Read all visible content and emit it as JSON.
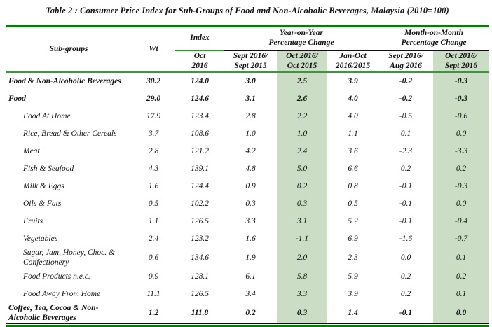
{
  "title": "Table 2 : Consumer Price Index for Sub-Groups of Food and Non-Alcoholic Beverages, Malaysia (2010=100)",
  "colors": {
    "table_border_green": "#008000",
    "header_rule_green": "#3c963c",
    "index_rule_green": "#2f8f2f",
    "highlight_green": "#cbdec5",
    "text": "#111111"
  },
  "header": {
    "subgroups": "Sub-groups",
    "wt": "Wt",
    "index_group": "Index",
    "yoy_line1": "Year-on-Year",
    "yoy_line2": "Percentage Change",
    "mom_line1": "Month-on-Month",
    "mom_line2": "Percentage Change"
  },
  "columns": [
    {
      "line1": "Oct",
      "line2": "2016",
      "highlight": false
    },
    {
      "line1": "Sept 2016/",
      "line2": "Sept 2015",
      "highlight": false
    },
    {
      "line1": "Oct 2016/",
      "line2": "Oct 2015",
      "highlight": true
    },
    {
      "line1": "Jan-Oct",
      "line2": "2016/2015",
      "highlight": false
    },
    {
      "line1": "Sept 2016/",
      "line2": "Aug 2016",
      "highlight": false
    },
    {
      "line1": "Oct 2016/",
      "line2": "Sept 2016",
      "highlight": true
    }
  ],
  "highlight_value_indexes": [
    3,
    6
  ],
  "rows": [
    {
      "label": "Food & Non-Alcoholic Beverages",
      "bold": true,
      "indent": false,
      "values": [
        "30.2",
        "124.0",
        "3.0",
        "2.5",
        "3.9",
        "-0.2",
        "-0.3"
      ]
    },
    {
      "label": "Food",
      "bold": true,
      "indent": false,
      "values": [
        "29.0",
        "124.6",
        "3.1",
        "2.6",
        "4.0",
        "-0.2",
        "-0.3"
      ]
    },
    {
      "label": "Food At Home",
      "bold": false,
      "indent": true,
      "values": [
        "17.9",
        "123.4",
        "2.8",
        "2.2",
        "4.0",
        "-0.5",
        "-0.6"
      ]
    },
    {
      "label": "Rice, Bread & Other Cereals",
      "bold": false,
      "indent": true,
      "values": [
        "3.7",
        "108.6",
        "1.0",
        "1.0",
        "1.1",
        "0.1",
        "0.0"
      ]
    },
    {
      "label": "Meat",
      "bold": false,
      "indent": true,
      "values": [
        "2.8",
        "121.2",
        "4.2",
        "2.4",
        "3.6",
        "-2.3",
        "-3.3"
      ]
    },
    {
      "label": "Fish & Seafood",
      "bold": false,
      "indent": true,
      "values": [
        "4.3",
        "139.1",
        "4.8",
        "5.0",
        "6.6",
        "0.2",
        "0.2"
      ]
    },
    {
      "label": "Milk & Eggs",
      "bold": false,
      "indent": true,
      "values": [
        "1.6",
        "124.4",
        "0.9",
        "0.2",
        "0.8",
        "-0.1",
        "-0.3"
      ]
    },
    {
      "label": "Oils & Fats",
      "bold": false,
      "indent": true,
      "values": [
        "0.5",
        "102.2",
        "0.3",
        "0.3",
        "0.5",
        "-0.1",
        "0.0"
      ]
    },
    {
      "label": "Fruits",
      "bold": false,
      "indent": true,
      "values": [
        "1.1",
        "126.5",
        "3.3",
        "3.1",
        "5.2",
        "-0.1",
        "-0.4"
      ]
    },
    {
      "label": "Vegetables",
      "bold": false,
      "indent": true,
      "values": [
        "2.4",
        "123.2",
        "1.6",
        "-1.1",
        "6.9",
        "-1.6",
        "-0.7"
      ]
    },
    {
      "label": "Sugar, Jam, Honey, Choc. & Confectionery",
      "bold": false,
      "indent": true,
      "values": [
        "0.6",
        "134.6",
        "1.9",
        "2.0",
        "2.3",
        "0.0",
        "0.1"
      ]
    },
    {
      "label": "Food Products n.e.c.",
      "bold": false,
      "indent": true,
      "values": [
        "0.9",
        "128.1",
        "6.1",
        "5.8",
        "5.9",
        "0.2",
        "0.2"
      ]
    },
    {
      "label": "Food Away From Home",
      "bold": false,
      "indent": true,
      "values": [
        "11.1",
        "126.5",
        "3.4",
        "3.3",
        "3.9",
        "0.2",
        "0.1"
      ]
    },
    {
      "label": "Coffee, Tea, Cocoa & Non-Alcoholic Beverages",
      "bold": true,
      "indent": false,
      "values": [
        "1.2",
        "111.8",
        "0.2",
        "0.3",
        "1.4",
        "-0.1",
        "0.0"
      ]
    }
  ]
}
